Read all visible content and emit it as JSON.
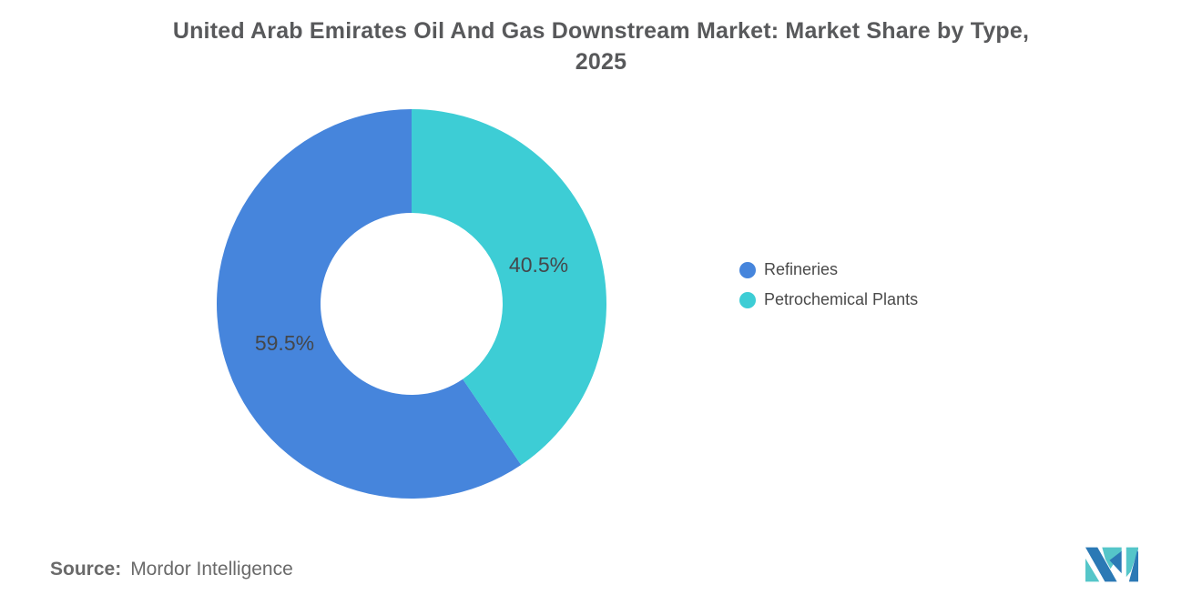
{
  "title": {
    "line1": "United Arab Emirates Oil And Gas Downstream Market: Market Share by Type,",
    "line2": "2025"
  },
  "chart_data": {
    "type": "pie",
    "subtype": "donut",
    "title": "United Arab Emirates Oil And Gas Downstream Market: Market Share by Type, 2025",
    "series": [
      {
        "name": "Refineries",
        "value": 59.5,
        "label": "59.5%",
        "color": "#4685DC"
      },
      {
        "name": "Petrochemical Plants",
        "value": 40.5,
        "label": "40.5%",
        "color": "#3DCDD5"
      }
    ],
    "layout": {
      "start_angle_deg": 0,
      "direction": "counterclockwise-order",
      "inner_radius_ratio": 0.465,
      "labels_inside": true,
      "label_color": "#44474B",
      "legend_position": "right"
    }
  },
  "legend": {
    "items": [
      {
        "label": "Refineries",
        "color": "#4685DC"
      },
      {
        "label": "Petrochemical Plants",
        "color": "#3DCDD5"
      }
    ]
  },
  "source": {
    "prefix": "Source:",
    "value": "Mordor Intelligence"
  },
  "logo": {
    "name": "mordor-intelligence-logo",
    "blue": "#2B79B5",
    "teal": "#55C6C9"
  }
}
